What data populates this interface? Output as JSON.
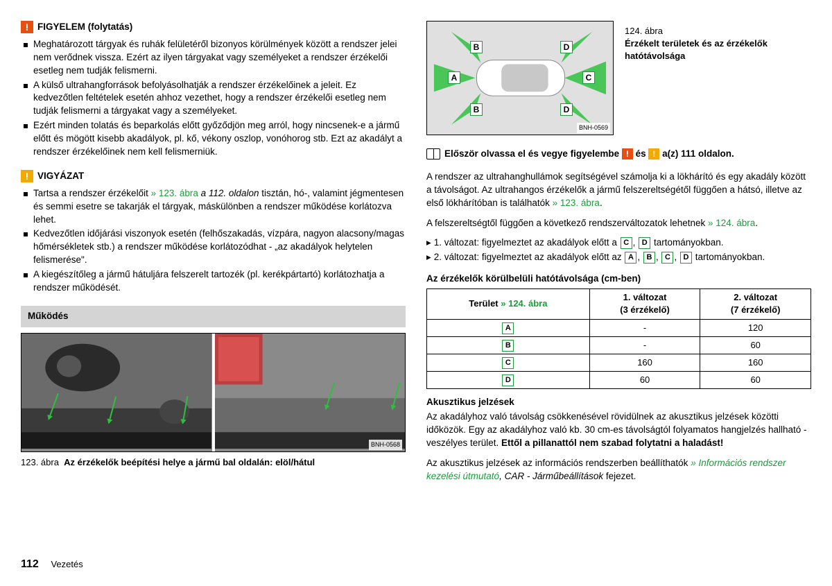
{
  "left": {
    "alert1": {
      "icon_color": "#e84e0f",
      "title": "FIGYELEM (folytatás)",
      "items": [
        "Meghatározott tárgyak és ruhák felületéről bizonyos körülmények között a rendszer jelei nem verődnek vissza. Ezért az ilyen tárgyakat vagy személyeket a rendszer érzékelői esetleg nem tudják felismerni.",
        "A külső ultrahangforrások befolyásolhatják a rendszer érzékelőinek a jeleit. Ez kedvezőtlen feltételek esetén ahhoz vezethet, hogy a rendszer érzékelői esetleg nem tudják felismerni a tárgyakat vagy a személyeket.",
        "Ezért minden tolatás és beparkolás előtt győződjön meg arról, hogy nincsenek-e a jármű előtt és mögött kisebb akadályok, pl. kő, vékony oszlop, vonóhorog stb. Ezt az akadályt a rendszer érzékelőinek nem kell felismerniük."
      ]
    },
    "alert2": {
      "icon_color": "#f2a900",
      "title": "VIGYÁZAT",
      "item1_pre": "Tartsa a rendszer érzékelőit ",
      "item1_link": "» 123. ábra",
      "item1_italic": " a 112. oldalon",
      "item1_post": " tisztán, hó-, valamint jégmentesen és semmi esetre se takarják el tárgyak, máskülönben a rendszer működése korlátozva lehet.",
      "item2": "Kedvezőtlen időjárási viszonyok esetén (felhőszakadás, vízpára, nagyon alacsony/magas hőmérsékletek stb.) a rendszer működése korlátozódhat - „az akadályok helytelen felismerése\".",
      "item3": "A kiegészítőleg a jármű hátuljára felszerelt tartozék (pl. kerékpártartó) korlátozhatja a rendszer működését."
    },
    "section_title": "Működés",
    "fig_label": "BNH-0568",
    "fig_caption_num": "123. ábra",
    "fig_caption_text": "Az érzékelők beépítési helye a jármű bal oldalán: elöl/hátul",
    "page_num": "112",
    "page_title": "Vezetés"
  },
  "right": {
    "fig_num": "124. ábra",
    "fig_title": "Érzékelt területek és az érzékelők hatótávolsága",
    "fig_label": "BNH-0569",
    "zones": {
      "A": "A",
      "B": "B",
      "C": "C",
      "D": "D"
    },
    "read_first_pre": "Először olvassa el és vegye figyelembe ",
    "read_first_mid": " és ",
    "read_first_post": " a(z) 111 oldalon.",
    "para1_pre": "A rendszer az ultrahanghullámok segítségével számolja ki a lökhárító és egy akadály között a távolságot. Az ultrahangos érzékelők a jármű felszereltségétől függően a hátsó, illetve az első lökhárítóban is találhatók ",
    "para1_link": "» 123. ábra",
    "para1_post": ".",
    "para2_pre": "A felszereltségtől függően a következő rendszerváltozatok lehetnek ",
    "para2_link": "» 124. ábra",
    "para2_post": ".",
    "variant1_pre": "1. változat: figyelmeztet az akadályok előtt a ",
    "variant1_post": " tartományokban.",
    "variant2_pre": "2. változat: figyelmeztet az akadályok előtt az ",
    "variant2_post": " tartományokban.",
    "table_title": "Az érzékelők körülbelüli hatótávolsága (cm-ben)",
    "table": {
      "head_area_pre": "Terület ",
      "head_area_link": "» 124. ábra",
      "head_v1": "1. változat",
      "head_v1_sub": "(3 érzékelő)",
      "head_v2": "2. változat",
      "head_v2_sub": "(7 érzékelő)",
      "rows": [
        {
          "zone": "A",
          "v1": "-",
          "v2": "120"
        },
        {
          "zone": "B",
          "v1": "-",
          "v2": "60"
        },
        {
          "zone": "C",
          "v1": "160",
          "v2": "160"
        },
        {
          "zone": "D",
          "v1": "60",
          "v2": "60"
        }
      ]
    },
    "acoustic_title": "Akusztikus jelzések",
    "acoustic_p1_pre": "Az akadályhoz való távolság csökkenésével rövidülnek az akusztikus jelzések közötti időközök. Egy az akadályhoz való kb. 30 cm-es távolságtól folyamatos hangjelzés hallható - veszélyes terület. ",
    "acoustic_p1_bold": "Ettől a pillanattól nem szabad folytatni a haladást!",
    "acoustic_p2_pre": "Az akusztikus jelzések az információs rendszerben beállíthatók ",
    "acoustic_p2_link": "» Információs rendszer kezelési útmutató",
    "acoustic_p2_post": ", CAR - Járműbeállítások",
    "acoustic_p2_end": " fejezet."
  },
  "colors": {
    "green": "#1a9d3a",
    "sensor_green": "#2fbf3f",
    "orange": "#e84e0f",
    "yellow": "#f2a900"
  }
}
